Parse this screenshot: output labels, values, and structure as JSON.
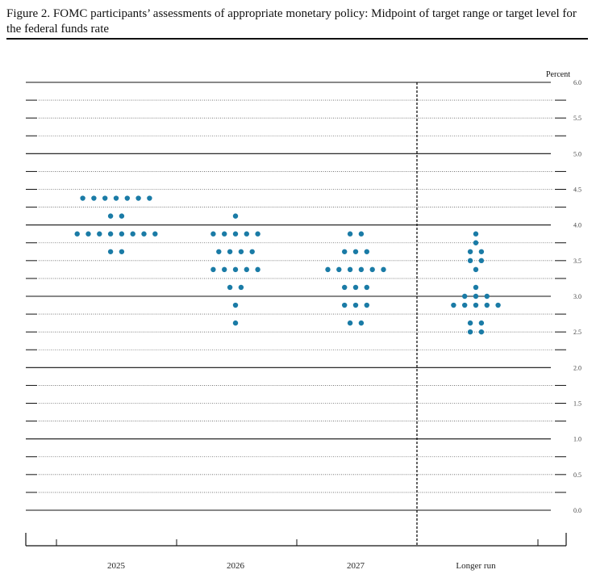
{
  "title": "Figure 2.  FOMC participants’ assessments of appropriate monetary policy: Midpoint of target range or target level for the federal funds rate",
  "colors": {
    "dot": "#1a7ba6",
    "line": "#111111",
    "minor": "#666666"
  },
  "chart_data": {
    "type": "scatter",
    "subtype": "dot plot",
    "unit_label": "Percent",
    "ylim": [
      0,
      6
    ],
    "yticks": [
      "0.0",
      "0.5",
      "1.0",
      "1.5",
      "2.0",
      "2.5",
      "3.0",
      "3.5",
      "4.0",
      "4.5",
      "5.0",
      "5.5",
      "6.0"
    ],
    "categories": [
      "2025",
      "2026",
      "2027",
      "Longer run"
    ],
    "dots": [
      {
        "category": "2025",
        "counts": [
          {
            "y": 4.375,
            "n": 7
          },
          {
            "y": 4.125,
            "n": 2
          },
          {
            "y": 3.875,
            "n": 8
          },
          {
            "y": 3.625,
            "n": 2
          }
        ]
      },
      {
        "category": "2026",
        "counts": [
          {
            "y": 4.125,
            "n": 1
          },
          {
            "y": 3.875,
            "n": 5
          },
          {
            "y": 3.625,
            "n": 4
          },
          {
            "y": 3.375,
            "n": 5
          },
          {
            "y": 3.125,
            "n": 2
          },
          {
            "y": 2.875,
            "n": 1
          },
          {
            "y": 2.625,
            "n": 1
          }
        ]
      },
      {
        "category": "2027",
        "counts": [
          {
            "y": 3.875,
            "n": 2
          },
          {
            "y": 3.625,
            "n": 3
          },
          {
            "y": 3.375,
            "n": 6
          },
          {
            "y": 3.125,
            "n": 3
          },
          {
            "y": 2.875,
            "n": 3
          },
          {
            "y": 2.625,
            "n": 2
          }
        ]
      },
      {
        "category": "Longer run",
        "counts": [
          {
            "y": 3.875,
            "n": 1
          },
          {
            "y": 3.75,
            "n": 1
          },
          {
            "y": 3.625,
            "n": 2
          },
          {
            "y": 3.5,
            "n": 2
          },
          {
            "y": 3.375,
            "n": 1
          },
          {
            "y": 3.125,
            "n": 1
          },
          {
            "y": 3.0,
            "n": 3
          },
          {
            "y": 2.875,
            "n": 5
          },
          {
            "y": 2.625,
            "n": 2
          },
          {
            "y": 2.5,
            "n": 2
          }
        ]
      }
    ],
    "separator_after_category": "2027",
    "grid": true
  }
}
